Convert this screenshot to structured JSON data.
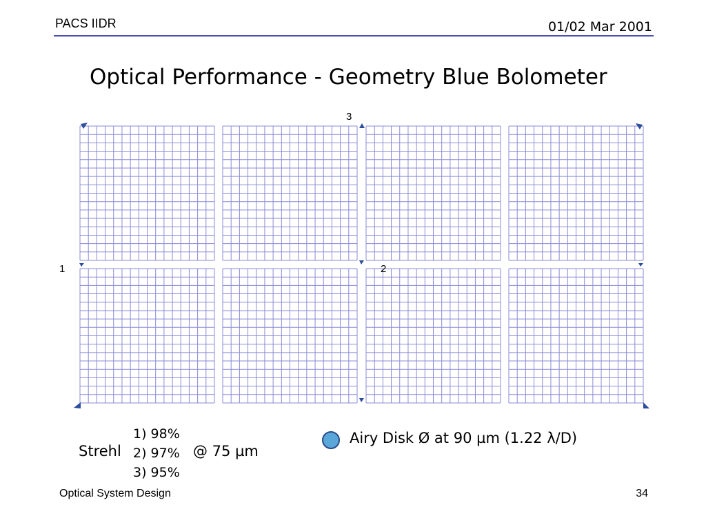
{
  "header": {
    "left": "PACS IIDR",
    "right": "01/02 Mar 2001"
  },
  "title": "Optical Performance - Geometry Blue Bolometer",
  "colors": {
    "grid": "#8a8ad6",
    "marker": "#2c4c9c",
    "rule": "#4b4fb0",
    "airy_fill": "#5aa8d9"
  },
  "diagram": {
    "arrays_per_row": 4,
    "rows": 2,
    "pixels_per_array_x": 16,
    "pixels_per_array_y": 16,
    "field_labels": {
      "p1": "1",
      "p2": "2",
      "p3": "3"
    }
  },
  "strehl": {
    "label": "Strehl",
    "values": [
      "1) 98%",
      "2) 97%",
      "3) 95%"
    ],
    "wavelength": "@ 75 µm"
  },
  "airy": {
    "text": "Airy Disk Ø at 90 µm (1.22 λ/D)"
  },
  "footer": {
    "left": "Optical System Design",
    "page": "34"
  }
}
